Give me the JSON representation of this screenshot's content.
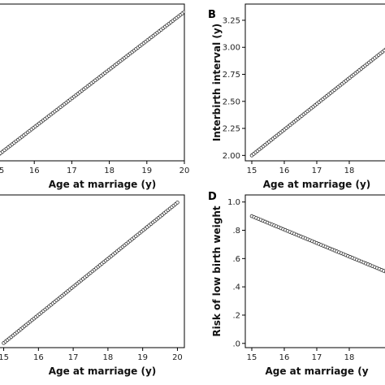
{
  "chart_data": [
    {
      "panel": "",
      "type": "scatter",
      "xlabel": "Age at marriage (y)",
      "ylabel": "",
      "x_ticks": [
        16,
        17,
        18,
        19,
        20
      ],
      "x_tick_labels": [
        "16",
        "17",
        "18",
        "19",
        "20"
      ],
      "x_partial_label": "5",
      "xlim": [
        15,
        20
      ],
      "y_ticks": [],
      "y_tick_labels": [],
      "ylim": [
        0,
        1
      ],
      "series": [
        {
          "x": [
            15,
            20
          ],
          "y": [
            0.03,
            0.95
          ]
        }
      ]
    },
    {
      "panel": "B",
      "type": "scatter",
      "xlabel": "Age at marriage (y)",
      "ylabel": "Interbirth interval (y)",
      "x_ticks": [
        15,
        16,
        17,
        18
      ],
      "x_tick_labels": [
        "15",
        "16",
        "17",
        "18"
      ],
      "x_partial_label": "",
      "xlim": [
        14.8,
        19.2
      ],
      "y_ticks": [
        2.0,
        2.25,
        2.5,
        2.75,
        3.0,
        3.25
      ],
      "y_tick_labels": [
        "2.00",
        "2.25",
        "2.50",
        "2.75",
        "3.00",
        "3.25"
      ],
      "ylim": [
        1.95,
        3.4
      ],
      "series": [
        {
          "x": [
            15,
            19.2
          ],
          "y": [
            2.0,
            3.0
          ]
        }
      ]
    },
    {
      "panel": "",
      "type": "scatter",
      "xlabel": "Age at marriage (y)",
      "ylabel": "",
      "x_ticks": [
        15,
        16,
        17,
        18,
        19,
        20
      ],
      "x_tick_labels": [
        "15",
        "16",
        "17",
        "18",
        "19",
        "20"
      ],
      "x_partial_label": "",
      "xlim": [
        14.8,
        20.2
      ],
      "y_ticks": [],
      "y_tick_labels": [],
      "ylim": [
        0,
        1
      ],
      "series": [
        {
          "x": [
            15,
            20
          ],
          "y": [
            0.03,
            0.95
          ]
        }
      ]
    },
    {
      "panel": "D",
      "type": "scatter",
      "xlabel": "Age at marriage (y",
      "ylabel": "Risk of low birth weight",
      "x_ticks": [
        15,
        16,
        17,
        18
      ],
      "x_tick_labels": [
        "15",
        "16",
        "17",
        "18"
      ],
      "x_partial_label": "",
      "xlim": [
        14.8,
        19.2
      ],
      "y_ticks": [
        0.0,
        0.2,
        0.4,
        0.6,
        0.8,
        1.0
      ],
      "y_tick_labels": [
        ".0",
        ".2",
        ".4",
        ".6",
        ".8",
        "1.0"
      ],
      "ylim": [
        -0.03,
        1.05
      ],
      "series": [
        {
          "x": [
            15,
            19.2
          ],
          "y": [
            0.9,
            0.5
          ]
        }
      ]
    }
  ]
}
